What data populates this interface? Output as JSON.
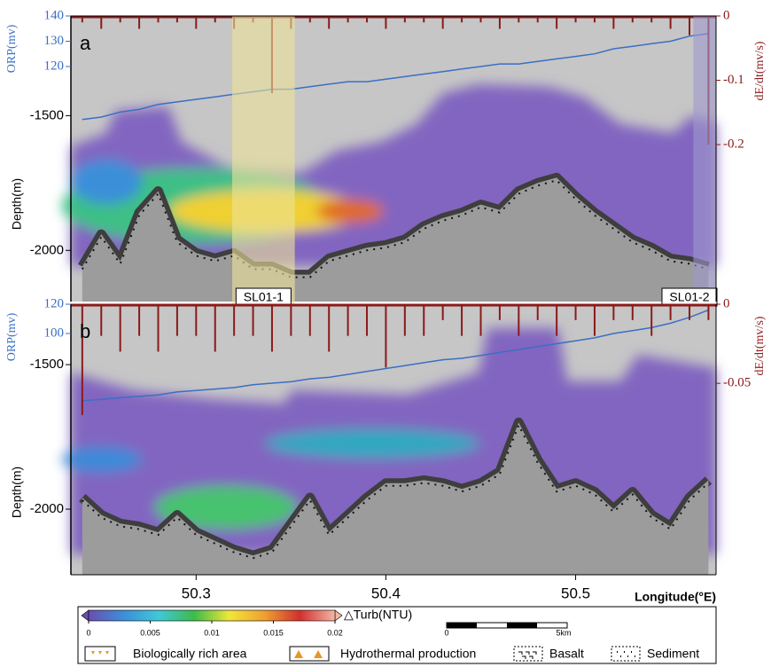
{
  "chart_data": [
    {
      "type": "line",
      "panel": "a",
      "ylabel": "Depth(m)",
      "y2label": "dE/dt(mv/s)",
      "y3label": "ORP(mv)",
      "xlim": [
        50.234,
        50.574
      ],
      "ylim": [
        -2190,
        -1130
      ],
      "yticks": [
        -1500,
        -2000
      ],
      "y2lim": [
        -0.444,
        0
      ],
      "y2ticks": [
        0,
        -0.1,
        -0.2
      ],
      "y3lim": [
        27,
        140
      ],
      "y3ticks": [
        120,
        130,
        140
      ],
      "x": [
        50.24,
        50.25,
        50.26,
        50.27,
        50.28,
        50.29,
        50.3,
        50.31,
        50.32,
        50.33,
        50.34,
        50.35,
        50.36,
        50.37,
        50.38,
        50.39,
        50.4,
        50.41,
        50.42,
        50.43,
        50.44,
        50.45,
        50.46,
        50.47,
        50.48,
        50.49,
        50.5,
        50.51,
        50.52,
        50.53,
        50.54,
        50.55,
        50.56,
        50.57
      ],
      "series": [
        {
          "type": "line",
          "axis": "y3",
          "color": "#3a6fc4",
          "values": [
            99,
            100,
            102,
            103,
            105,
            106,
            107,
            108,
            109,
            110,
            111,
            111,
            112,
            113,
            114,
            114,
            115,
            116,
            117,
            118,
            119,
            120,
            121,
            121,
            122,
            123,
            124,
            125,
            127,
            128,
            129,
            130,
            132,
            133
          ]
        },
        {
          "type": "area",
          "axis": "y",
          "color": "#9c9c9c",
          "edge_color": "#3e3e3e",
          "values": [
            -2060,
            -1940,
            -2040,
            -1860,
            -1780,
            -1960,
            -2010,
            -2030,
            -2010,
            -2060,
            -2060,
            -2090,
            -2090,
            -2030,
            -2010,
            -1990,
            -1980,
            -1960,
            -1910,
            -1880,
            -1860,
            -1830,
            -1850,
            -1780,
            -1750,
            -1730,
            -1800,
            -1860,
            -1910,
            -1960,
            -1990,
            -2030,
            -2040,
            -2060
          ]
        },
        {
          "type": "spikes",
          "axis": "y2",
          "color": "#8b1a1a",
          "values": [
            -0.01,
            -0.02,
            -0.01,
            -0.02,
            -0.01,
            -0.01,
            -0.02,
            -0.01,
            -0.02,
            -0.01,
            -0.12,
            -0.02,
            -0.01,
            -0.02,
            -0.01,
            -0.01,
            -0.02,
            -0.01,
            -0.01,
            -0.02,
            -0.01,
            -0.01,
            -0.02,
            -0.01,
            -0.01,
            -0.02,
            -0.01,
            -0.01,
            -0.02,
            -0.01,
            -0.01,
            -0.02,
            -0.03,
            -0.2
          ]
        }
      ],
      "highlights": [
        {
          "xlim": [
            50.319,
            50.352
          ],
          "color": "#ece39a",
          "label": "SL01-1"
        },
        {
          "xlim": [
            50.562,
            50.574
          ],
          "color": "#9f98cc",
          "label": "SL01-2"
        }
      ]
    },
    {
      "type": "line",
      "panel": "b",
      "ylabel": "Depth(m)",
      "y2label": "dE/dt(mv/s)",
      "y3label": "ORP(mv)",
      "xlabel": "Longitude(°E)",
      "xlim": [
        50.234,
        50.574
      ],
      "xticks": [
        50.3,
        50.4,
        50.5
      ],
      "ylim": [
        -2227,
        -1291
      ],
      "yticks": [
        -1500,
        -2000
      ],
      "y2lim": [
        -0.171,
        0
      ],
      "y2ticks": [
        0,
        -0.05
      ],
      "y3lim": [
        -65,
        120
      ],
      "y3ticks": [
        100,
        120
      ],
      "x": [
        50.24,
        50.25,
        50.26,
        50.27,
        50.28,
        50.29,
        50.3,
        50.31,
        50.32,
        50.33,
        50.34,
        50.35,
        50.36,
        50.37,
        50.38,
        50.39,
        50.4,
        50.41,
        50.42,
        50.43,
        50.44,
        50.45,
        50.46,
        50.47,
        50.48,
        50.49,
        50.5,
        50.51,
        50.52,
        50.53,
        50.54,
        50.55,
        50.56,
        50.57
      ],
      "series": [
        {
          "type": "line",
          "axis": "y3",
          "color": "#3a6fc4",
          "values": [
            54,
            55,
            56,
            57,
            58,
            60,
            61,
            62,
            63,
            65,
            66,
            67,
            69,
            70,
            72,
            74,
            76,
            78,
            80,
            82,
            83,
            85,
            87,
            89,
            91,
            93,
            95,
            97,
            100,
            102,
            104,
            107,
            111,
            116
          ]
        },
        {
          "type": "area",
          "axis": "y",
          "color": "#9c9c9c",
          "edge_color": "#3e3e3e",
          "values": [
            -1960,
            -2020,
            -2050,
            -2060,
            -2080,
            -2020,
            -2080,
            -2110,
            -2140,
            -2160,
            -2140,
            -2050,
            -1960,
            -2080,
            -2020,
            -1960,
            -1910,
            -1910,
            -1900,
            -1910,
            -1930,
            -1910,
            -1870,
            -1700,
            -1830,
            -1930,
            -1910,
            -1940,
            -2000,
            -1940,
            -2020,
            -2060,
            -1960,
            -1900
          ]
        },
        {
          "type": "spikes",
          "axis": "y2",
          "color": "#8b1a1a",
          "values": [
            -0.07,
            -0.02,
            -0.03,
            -0.02,
            -0.03,
            -0.02,
            -0.02,
            -0.03,
            -0.02,
            -0.02,
            -0.03,
            -0.02,
            -0.02,
            -0.03,
            -0.02,
            -0.02,
            -0.04,
            -0.02,
            -0.02,
            -0.01,
            -0.02,
            -0.02,
            -0.01,
            -0.02,
            -0.01,
            -0.02,
            -0.01,
            -0.02,
            -0.01,
            -0.01,
            -0.02,
            -0.01,
            -0.01,
            -0.01
          ]
        }
      ]
    }
  ],
  "legend": {
    "colorbar": {
      "label": "△Turb(NTU)",
      "lim": [
        0,
        0.02
      ],
      "ticks": [
        0,
        0.005,
        0.01,
        0.015,
        0.02
      ],
      "colors": [
        "#6a4fb0",
        "#3b8fd9",
        "#40c8d8",
        "#3dbb4a",
        "#f1e63a",
        "#f0a030",
        "#d0302e",
        "#f4b6a6"
      ]
    },
    "scale_bar": {
      "labels": [
        "0",
        "5km"
      ]
    },
    "items": [
      "Biologically rich area",
      "Hydrothermal production",
      "Basalt",
      "Sediment"
    ]
  }
}
